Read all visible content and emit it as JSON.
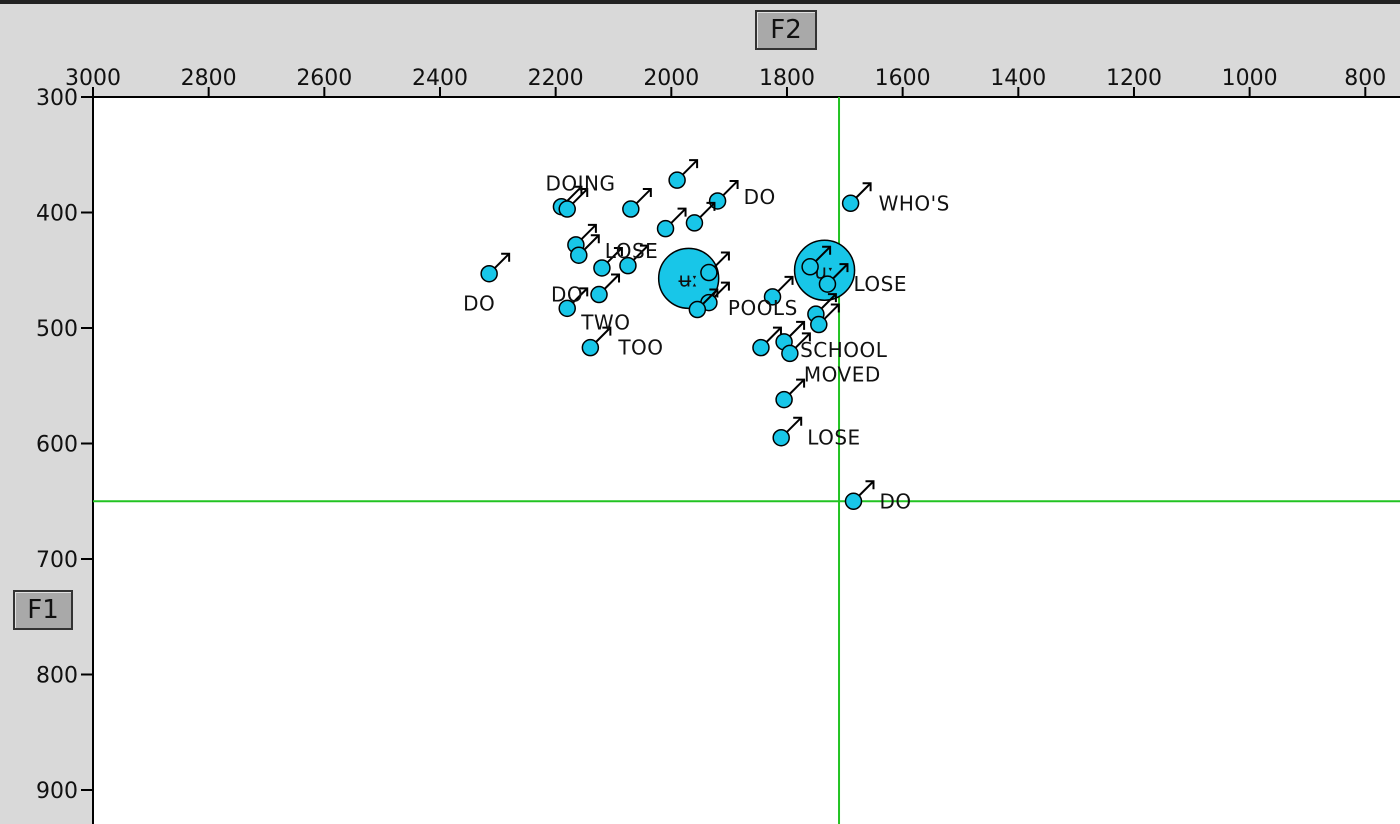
{
  "window": {
    "x_axis_button": "F2",
    "y_axis_button": "F1"
  },
  "chart_data": {
    "type": "scatter",
    "xlabel": "F2",
    "ylabel": "F1",
    "x_axis": {
      "ticks": [
        3000,
        2800,
        2600,
        2400,
        2200,
        2000,
        1800,
        1600,
        1400,
        1200,
        1000,
        800
      ],
      "range": [
        3000,
        740
      ],
      "reversed": true,
      "position": "top"
    },
    "y_axis": {
      "ticks": [
        300,
        400,
        500,
        600,
        700,
        800,
        900
      ],
      "range": [
        300,
        925
      ],
      "reversed": true,
      "position": "left"
    },
    "grid": false,
    "crosshair": {
      "x": 1710,
      "y": 650,
      "color": "#22c322"
    },
    "point_color": "#18c6e8",
    "marker": "male-symbol",
    "series": [
      {
        "points": [
          {
            "x": 2190,
            "y": 395,
            "label": "DOING"
          },
          {
            "x": 2180,
            "y": 397
          },
          {
            "x": 2070,
            "y": 397
          },
          {
            "x": 1990,
            "y": 372
          },
          {
            "x": 1920,
            "y": 390,
            "label": "DO"
          },
          {
            "x": 1960,
            "y": 409
          },
          {
            "x": 2010,
            "y": 414
          },
          {
            "x": 2165,
            "y": 428
          },
          {
            "x": 2160,
            "y": 437,
            "label": "LOSE"
          },
          {
            "x": 2120,
            "y": 448
          },
          {
            "x": 2075,
            "y": 446
          },
          {
            "x": 2315,
            "y": 453,
            "label": "DO"
          },
          {
            "x": 2125,
            "y": 471,
            "label": "DO"
          },
          {
            "x": 2180,
            "y": 483,
            "label": "TWO"
          },
          {
            "x": 2140,
            "y": 517,
            "label": "TOO"
          },
          {
            "x": 1935,
            "y": 452
          },
          {
            "x": 1935,
            "y": 478
          },
          {
            "x": 1955,
            "y": 484
          },
          {
            "x": 1825,
            "y": 473
          },
          {
            "x": 1760,
            "y": 447
          },
          {
            "x": 1730,
            "y": 462,
            "label": "LOSE"
          },
          {
            "x": 1750,
            "y": 488,
            "label": "POOLS"
          },
          {
            "x": 1745,
            "y": 497
          },
          {
            "x": 1845,
            "y": 517
          },
          {
            "x": 1805,
            "y": 512,
            "label": "SCHOOL"
          },
          {
            "x": 1795,
            "y": 522,
            "label": "MOVED"
          },
          {
            "x": 1805,
            "y": 562
          },
          {
            "x": 1810,
            "y": 595,
            "label": "LOSE"
          },
          {
            "x": 1690,
            "y": 392,
            "label": "WHO'S"
          },
          {
            "x": 1685,
            "y": 650,
            "label": "DO"
          }
        ]
      }
    ],
    "means": [
      {
        "x": 1970,
        "y": 457,
        "symbol": "ʉː"
      },
      {
        "x": 1735,
        "y": 450,
        "symbol": "uː"
      }
    ]
  }
}
